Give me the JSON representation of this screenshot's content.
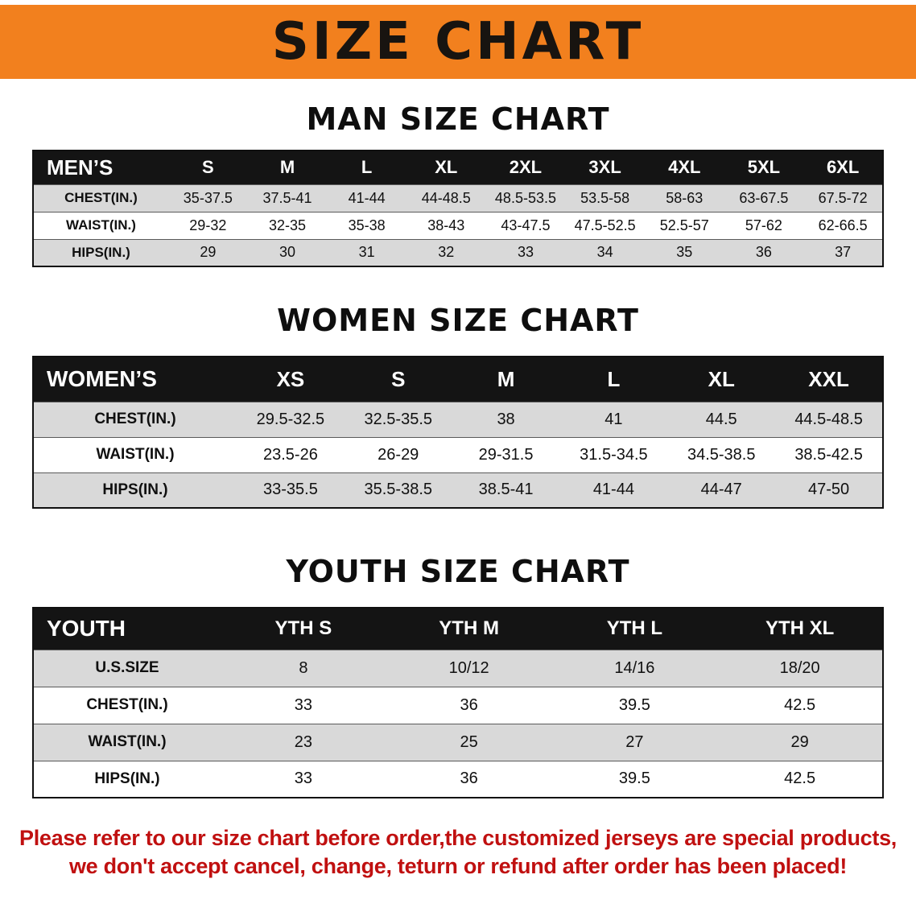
{
  "banner": {
    "title": "SIZE CHART"
  },
  "colors": {
    "banner_bg": "#f2801e",
    "banner_text": "#181410",
    "table_header_bg": "#141414",
    "table_header_text": "#ffffff",
    "row_stripe": "#d9d9d9",
    "footer_text": "#c01010"
  },
  "chart_data": [
    {
      "type": "table",
      "title": "MAN SIZE CHART",
      "corner_label": "MEN’S",
      "columns": [
        "S",
        "M",
        "L",
        "XL",
        "2XL",
        "3XL",
        "4XL",
        "5XL",
        "6XL"
      ],
      "rows": [
        {
          "label": "CHEST(IN.)",
          "values": [
            "35-37.5",
            "37.5-41",
            "41-44",
            "44-48.5",
            "48.5-53.5",
            "53.5-58",
            "58-63",
            "63-67.5",
            "67.5-72"
          ]
        },
        {
          "label": "WAIST(IN.)",
          "values": [
            "29-32",
            "32-35",
            "35-38",
            "38-43",
            "43-47.5",
            "47.5-52.5",
            "52.5-57",
            "57-62",
            "62-66.5"
          ]
        },
        {
          "label": "HIPS(IN.)",
          "values": [
            "29",
            "30",
            "31",
            "32",
            "33",
            "34",
            "35",
            "36",
            "37"
          ]
        }
      ]
    },
    {
      "type": "table",
      "title": "WOMEN SIZE CHART",
      "corner_label": "WOMEN’S",
      "columns": [
        "XS",
        "S",
        "M",
        "L",
        "XL",
        "XXL"
      ],
      "rows": [
        {
          "label": "CHEST(IN.)",
          "values": [
            "29.5-32.5",
            "32.5-35.5",
            "38",
            "41",
            "44.5",
            "44.5-48.5"
          ]
        },
        {
          "label": "WAIST(IN.)",
          "values": [
            "23.5-26",
            "26-29",
            "29-31.5",
            "31.5-34.5",
            "34.5-38.5",
            "38.5-42.5"
          ]
        },
        {
          "label": "HIPS(IN.)",
          "values": [
            "33-35.5",
            "35.5-38.5",
            "38.5-41",
            "41-44",
            "44-47",
            "47-50"
          ]
        }
      ]
    },
    {
      "type": "table",
      "title": "YOUTH SIZE CHART",
      "corner_label": "YOUTH",
      "columns": [
        "YTH S",
        "YTH M",
        "YTH L",
        "YTH XL"
      ],
      "rows": [
        {
          "label": "U.S.SIZE",
          "values": [
            "8",
            "10/12",
            "14/16",
            "18/20"
          ]
        },
        {
          "label": "CHEST(IN.)",
          "values": [
            "33",
            "36",
            "39.5",
            "42.5"
          ]
        },
        {
          "label": "WAIST(IN.)",
          "values": [
            "23",
            "25",
            "27",
            "29"
          ]
        },
        {
          "label": "HIPS(IN.)",
          "values": [
            "33",
            "36",
            "39.5",
            "42.5"
          ]
        }
      ]
    }
  ],
  "footer": {
    "line1": "Please refer to our size chart before order,the customized jerseys are special products,",
    "line2": "we don't accept cancel, change, teturn or refund after order has been placed!"
  }
}
